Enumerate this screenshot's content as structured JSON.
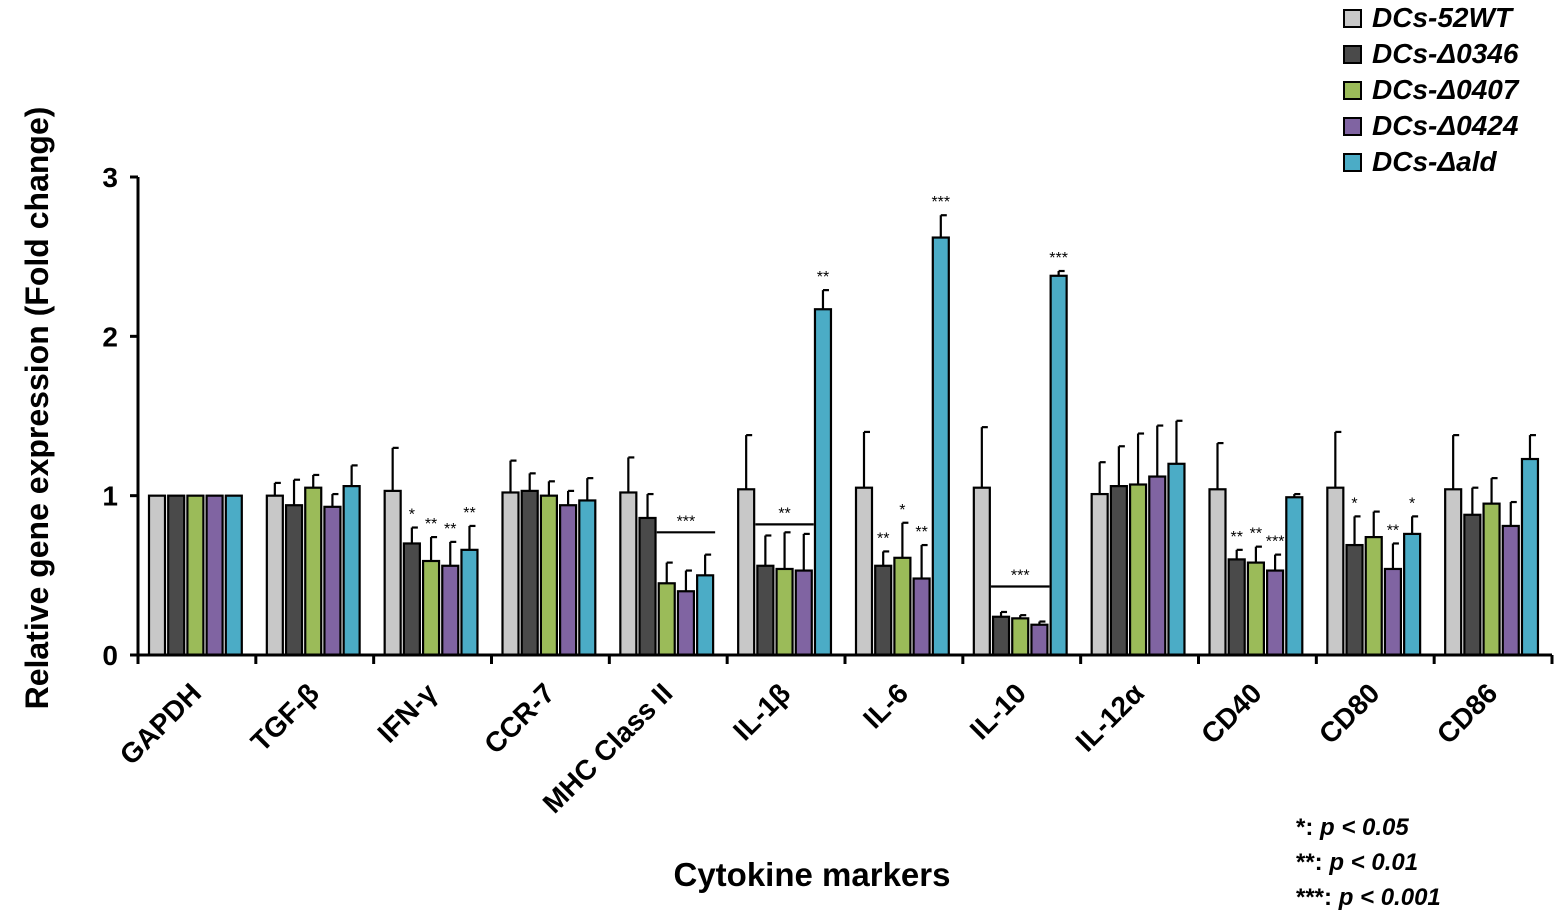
{
  "chart_data": {
    "type": "bar",
    "title": "",
    "xlabel": "Cytokine markers",
    "ylabel": "Relative gene expression (Fold change)",
    "ylim": [
      0,
      3
    ],
    "yticks": [
      "0",
      "1",
      "2",
      "3"
    ],
    "grid": false,
    "legend_position": "top-right",
    "categories": [
      "GAPDH",
      "TGF-β",
      "IFN-γ",
      "CCR-7",
      "MHC Class II",
      "IL-1β",
      "IL-6",
      "IL-10",
      "IL-12α",
      "CD40",
      "CD80",
      "CD86"
    ],
    "series": [
      {
        "name": "DCs-52WT",
        "color": "#c8c8c8",
        "values": [
          1.0,
          1.0,
          1.03,
          1.02,
          1.02,
          1.04,
          1.05,
          1.05,
          1.01,
          1.04,
          1.05,
          1.04
        ],
        "errors": [
          0.0,
          0.08,
          0.27,
          0.2,
          0.22,
          0.34,
          0.35,
          0.38,
          0.2,
          0.29,
          0.35,
          0.34
        ],
        "annotations": [
          "",
          "",
          "",
          "",
          "",
          "",
          "",
          "",
          "",
          "",
          "",
          ""
        ]
      },
      {
        "name": "DCs-Δ0346",
        "color": "#4a4a4a",
        "values": [
          1.0,
          0.94,
          0.7,
          1.03,
          0.86,
          0.56,
          0.56,
          0.24,
          1.06,
          0.6,
          0.69,
          0.88
        ],
        "errors": [
          0.0,
          0.16,
          0.1,
          0.11,
          0.15,
          0.19,
          0.09,
          0.03,
          0.25,
          0.06,
          0.18,
          0.17
        ],
        "annotations": [
          "",
          "",
          "*",
          "",
          "",
          "",
          "**",
          "",
          "",
          "**",
          "*",
          ""
        ]
      },
      {
        "name": "DCs-Δ0407",
        "color": "#9bbb59",
        "values": [
          1.0,
          1.05,
          0.59,
          1.0,
          0.45,
          0.54,
          0.61,
          0.23,
          1.07,
          0.58,
          0.74,
          0.95
        ],
        "errors": [
          0.0,
          0.08,
          0.15,
          0.09,
          0.13,
          0.23,
          0.22,
          0.02,
          0.32,
          0.1,
          0.16,
          0.16
        ],
        "annotations": [
          "",
          "",
          "**",
          "",
          "",
          "",
          "*",
          "",
          "",
          "**",
          "",
          ""
        ]
      },
      {
        "name": "DCs-Δ0424",
        "color": "#8064a2",
        "values": [
          1.0,
          0.93,
          0.56,
          0.94,
          0.4,
          0.53,
          0.48,
          0.19,
          1.12,
          0.53,
          0.54,
          0.81
        ],
        "errors": [
          0.0,
          0.08,
          0.15,
          0.09,
          0.13,
          0.23,
          0.21,
          0.02,
          0.32,
          0.1,
          0.16,
          0.15
        ],
        "annotations": [
          "",
          "",
          "**",
          "",
          "",
          "",
          "**",
          "",
          "",
          "***",
          "**",
          ""
        ]
      },
      {
        "name": "DCs-Δald",
        "color": "#4bacc6",
        "values": [
          1.0,
          1.06,
          0.66,
          0.97,
          0.5,
          2.17,
          2.62,
          2.38,
          1.2,
          0.99,
          0.76,
          1.23
        ],
        "errors": [
          0.0,
          0.13,
          0.15,
          0.14,
          0.13,
          0.12,
          0.14,
          0.03,
          0.27,
          0.02,
          0.11,
          0.15
        ],
        "annotations": [
          "",
          "",
          "**",
          "",
          "",
          "**",
          "***",
          "***",
          "",
          "",
          "*",
          ""
        ]
      }
    ],
    "group_annotations": [
      {
        "category": "MHC Class II",
        "label": "***",
        "from_series": 2,
        "to_series": 4,
        "level": 0.77
      },
      {
        "category": "IL-1β",
        "label": "**",
        "from_series": 1,
        "to_series": 3,
        "level": 0.82
      },
      {
        "category": "IL-10",
        "label": "***",
        "from_series": 1,
        "to_series": 3,
        "level": 0.43
      }
    ],
    "significance_legend": [
      {
        "stars": "*",
        "text": "p < 0.05"
      },
      {
        "stars": "**",
        "text": "p < 0.01"
      },
      {
        "stars": "***",
        "text": "p < 0.001"
      }
    ]
  }
}
